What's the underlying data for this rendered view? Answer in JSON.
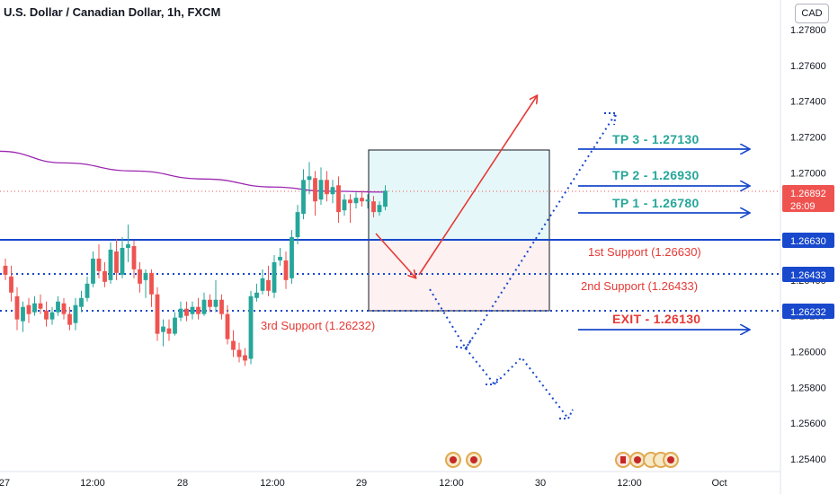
{
  "header": {
    "title": "U.S. Dollar / Canadian Dollar, 1h, FXCM",
    "currency_button": "CAD"
  },
  "price_tags": {
    "current_price": "1.26892",
    "countdown": "26:09",
    "partial": "1.26800",
    "support1": "1.26630",
    "support2": "1.26433",
    "support3": "1.26232"
  },
  "annotations": {
    "support1": "1st Support (1.26630)",
    "support2": "2nd Support (1.26433)",
    "support3": "3rd Support (1.26232)",
    "tp3": "TP 3 - 1.27130",
    "tp2": "TP 2 - 1.26930",
    "tp1": "TP 1 - 1.26780",
    "exit": "EXIT - 1.26130"
  },
  "colors": {
    "up": "#26a69a",
    "down": "#ef5350",
    "ma": "#9c27b0",
    "support_line": "#1848cc",
    "arrow_red": "#e53935",
    "arrow_blue": "#1848cc"
  },
  "chart_data": {
    "type": "candlestick",
    "symbol": "U.S. Dollar / Canadian Dollar",
    "interval": "1h",
    "source": "FXCM",
    "y_ticks": [
      "1.27800",
      "1.27600",
      "1.27400",
      "1.27200",
      "1.27000",
      "1.26800",
      "1.26600",
      "1.26400",
      "1.26200",
      "1.26000",
      "1.25800",
      "1.25600",
      "1.25400"
    ],
    "ylim": [
      1.2535,
      1.2805
    ],
    "x_ticks": [
      "27",
      "12:00",
      "28",
      "12:00",
      "29",
      "12:00",
      "30",
      "12:00",
      "Oct"
    ],
    "candles": [
      {
        "o": 1.2648,
        "h": 1.2652,
        "c": 1.2643,
        "l": 1.264
      },
      {
        "o": 1.2642,
        "h": 1.2648,
        "c": 1.2633,
        "l": 1.2628
      },
      {
        "o": 1.2631,
        "h": 1.2636,
        "c": 1.2618,
        "l": 1.2612
      },
      {
        "o": 1.2617,
        "h": 1.2628,
        "c": 1.2625,
        "l": 1.2611
      },
      {
        "o": 1.2626,
        "h": 1.263,
        "c": 1.2621,
        "l": 1.2616
      },
      {
        "o": 1.2622,
        "h": 1.2631,
        "c": 1.2627,
        "l": 1.262
      },
      {
        "o": 1.2627,
        "h": 1.2632,
        "c": 1.2624,
        "l": 1.2621
      },
      {
        "o": 1.2623,
        "h": 1.2628,
        "c": 1.2618,
        "l": 1.2614
      },
      {
        "o": 1.2618,
        "h": 1.2625,
        "c": 1.2622,
        "l": 1.2615
      },
      {
        "o": 1.2622,
        "h": 1.2631,
        "c": 1.2628,
        "l": 1.262
      },
      {
        "o": 1.2627,
        "h": 1.263,
        "c": 1.2621,
        "l": 1.2618
      },
      {
        "o": 1.2621,
        "h": 1.2625,
        "c": 1.2615,
        "l": 1.2612
      },
      {
        "o": 1.2616,
        "h": 1.263,
        "c": 1.2626,
        "l": 1.2612
      },
      {
        "o": 1.2625,
        "h": 1.2634,
        "c": 1.263,
        "l": 1.2622
      },
      {
        "o": 1.263,
        "h": 1.2642,
        "c": 1.2638,
        "l": 1.2628
      },
      {
        "o": 1.2638,
        "h": 1.2656,
        "c": 1.2652,
        "l": 1.2636
      },
      {
        "o": 1.2652,
        "h": 1.266,
        "c": 1.2645,
        "l": 1.2641
      },
      {
        "o": 1.2645,
        "h": 1.265,
        "c": 1.2639,
        "l": 1.2636
      },
      {
        "o": 1.264,
        "h": 1.2661,
        "c": 1.2657,
        "l": 1.2638
      },
      {
        "o": 1.2656,
        "h": 1.2663,
        "c": 1.2644,
        "l": 1.264
      },
      {
        "o": 1.2643,
        "h": 1.2664,
        "c": 1.2658,
        "l": 1.2641
      },
      {
        "o": 1.2658,
        "h": 1.2671,
        "c": 1.266,
        "l": 1.265
      },
      {
        "o": 1.2659,
        "h": 1.2662,
        "c": 1.2646,
        "l": 1.2641
      },
      {
        "o": 1.2646,
        "h": 1.265,
        "c": 1.2638,
        "l": 1.2633
      },
      {
        "o": 1.264,
        "h": 1.2646,
        "c": 1.2644,
        "l": 1.263
      },
      {
        "o": 1.2644,
        "h": 1.2646,
        "c": 1.2632,
        "l": 1.2625
      },
      {
        "o": 1.2632,
        "h": 1.2636,
        "c": 1.261,
        "l": 1.2606
      },
      {
        "o": 1.2611,
        "h": 1.2618,
        "c": 1.2614,
        "l": 1.2603
      },
      {
        "o": 1.2613,
        "h": 1.2618,
        "c": 1.261,
        "l": 1.2606
      },
      {
        "o": 1.261,
        "h": 1.2622,
        "c": 1.2619,
        "l": 1.2609
      },
      {
        "o": 1.2619,
        "h": 1.2628,
        "c": 1.2624,
        "l": 1.2617
      },
      {
        "o": 1.2624,
        "h": 1.2628,
        "c": 1.262,
        "l": 1.2617
      },
      {
        "o": 1.2621,
        "h": 1.2628,
        "c": 1.2625,
        "l": 1.2618
      },
      {
        "o": 1.2625,
        "h": 1.263,
        "c": 1.2621,
        "l": 1.2618
      },
      {
        "o": 1.2621,
        "h": 1.2633,
        "c": 1.2629,
        "l": 1.262
      },
      {
        "o": 1.2629,
        "h": 1.2632,
        "c": 1.2625,
        "l": 1.2622
      },
      {
        "o": 1.2625,
        "h": 1.264,
        "c": 1.2629,
        "l": 1.2622
      },
      {
        "o": 1.2629,
        "h": 1.2632,
        "c": 1.2621,
        "l": 1.2618
      },
      {
        "o": 1.2621,
        "h": 1.2626,
        "c": 1.2607,
        "l": 1.2604
      },
      {
        "o": 1.2606,
        "h": 1.2612,
        "c": 1.2601,
        "l": 1.2597
      },
      {
        "o": 1.2601,
        "h": 1.2605,
        "c": 1.2597,
        "l": 1.2594
      },
      {
        "o": 1.2598,
        "h": 1.2602,
        "c": 1.2595,
        "l": 1.2592
      },
      {
        "o": 1.2596,
        "h": 1.2634,
        "c": 1.2631,
        "l": 1.2593
      },
      {
        "o": 1.263,
        "h": 1.2638,
        "c": 1.2633,
        "l": 1.2628
      },
      {
        "o": 1.2634,
        "h": 1.2646,
        "c": 1.2641,
        "l": 1.2632
      },
      {
        "o": 1.264,
        "h": 1.2648,
        "c": 1.2634,
        "l": 1.2631
      },
      {
        "o": 1.2633,
        "h": 1.2654,
        "c": 1.265,
        "l": 1.263
      },
      {
        "o": 1.2651,
        "h": 1.2658,
        "c": 1.2653,
        "l": 1.2648
      },
      {
        "o": 1.2651,
        "h": 1.2656,
        "c": 1.264,
        "l": 1.2635
      },
      {
        "o": 1.2641,
        "h": 1.2668,
        "c": 1.2664,
        "l": 1.2638
      },
      {
        "o": 1.2664,
        "h": 1.2682,
        "c": 1.2678,
        "l": 1.266
      },
      {
        "o": 1.2677,
        "h": 1.2702,
        "c": 1.2696,
        "l": 1.2674
      },
      {
        "o": 1.2696,
        "h": 1.2706,
        "c": 1.2698,
        "l": 1.2688
      },
      {
        "o": 1.2697,
        "h": 1.2701,
        "c": 1.2684,
        "l": 1.2676
      },
      {
        "o": 1.2685,
        "h": 1.2703,
        "c": 1.2696,
        "l": 1.2682
      },
      {
        "o": 1.2696,
        "h": 1.2701,
        "c": 1.2688,
        "l": 1.2684
      },
      {
        "o": 1.2688,
        "h": 1.2696,
        "c": 1.2692,
        "l": 1.2683
      },
      {
        "o": 1.2693,
        "h": 1.2698,
        "c": 1.2678,
        "l": 1.2672
      },
      {
        "o": 1.2679,
        "h": 1.2688,
        "c": 1.2685,
        "l": 1.2676
      },
      {
        "o": 1.2685,
        "h": 1.2688,
        "c": 1.2683,
        "l": 1.2672
      },
      {
        "o": 1.2683,
        "h": 1.2689,
        "c": 1.2686,
        "l": 1.268
      },
      {
        "o": 1.2686,
        "h": 1.269,
        "c": 1.2684,
        "l": 1.2681
      },
      {
        "o": 1.2684,
        "h": 1.2688,
        "c": 1.2685,
        "l": 1.268
      },
      {
        "o": 1.2684,
        "h": 1.2687,
        "c": 1.2678,
        "l": 1.2675
      },
      {
        "o": 1.2678,
        "h": 1.2684,
        "c": 1.2682,
        "l": 1.2676
      },
      {
        "o": 1.2681,
        "h": 1.2693,
        "c": 1.269,
        "l": 1.2679
      }
    ],
    "moving_average": [
      {
        "bar": -1,
        "y": 1.2712
      },
      {
        "bar": 10,
        "y": 1.27055
      },
      {
        "bar": 22,
        "y": 1.2701
      },
      {
        "bar": 34,
        "y": 1.26965
      },
      {
        "bar": 46,
        "y": 1.2692
      },
      {
        "bar": 55,
        "y": 1.26897
      },
      {
        "bar": 65,
        "y": 1.26892
      }
    ],
    "levels": {
      "current": 1.26892,
      "support1": 1.2663,
      "support2": 1.26433,
      "support3": 1.26232
    }
  }
}
